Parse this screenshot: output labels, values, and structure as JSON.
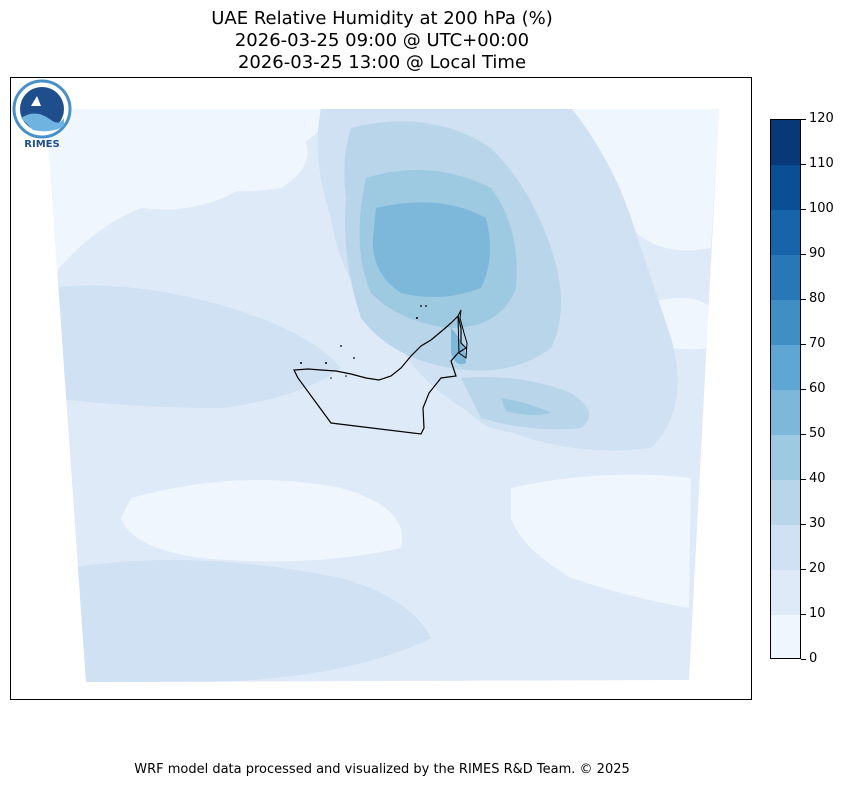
{
  "title": {
    "line1": "UAE Relative Humidity at 200 hPa (%)",
    "line2": "2026-03-25 09:00 @ UTC+00:00",
    "line3": "2026-03-25 13:00 @ Local Time"
  },
  "colorbar": {
    "levels": [
      0,
      10,
      20,
      30,
      40,
      50,
      60,
      70,
      80,
      90,
      100,
      110,
      120
    ],
    "colors": [
      "#eff6fd",
      "#deeaf7",
      "#cfe1f2",
      "#b8d5ea",
      "#9dc9e1",
      "#7db8da",
      "#5ea6d3",
      "#3f8fc5",
      "#2878b8",
      "#1764ab",
      "#0a4f96",
      "#083877"
    ],
    "tick_labels": [
      "0",
      "10",
      "20",
      "30",
      "40",
      "50",
      "60",
      "70",
      "80",
      "90",
      "100",
      "110",
      "120"
    ]
  },
  "map": {
    "variable": "Relative Humidity",
    "pressure_level": "200 hPa",
    "unit": "%",
    "region": "UAE"
  },
  "logo": {
    "text": "RIMES"
  },
  "credit": "WRF model data processed and visualized by the RIMES R&D Team. © 2025"
}
